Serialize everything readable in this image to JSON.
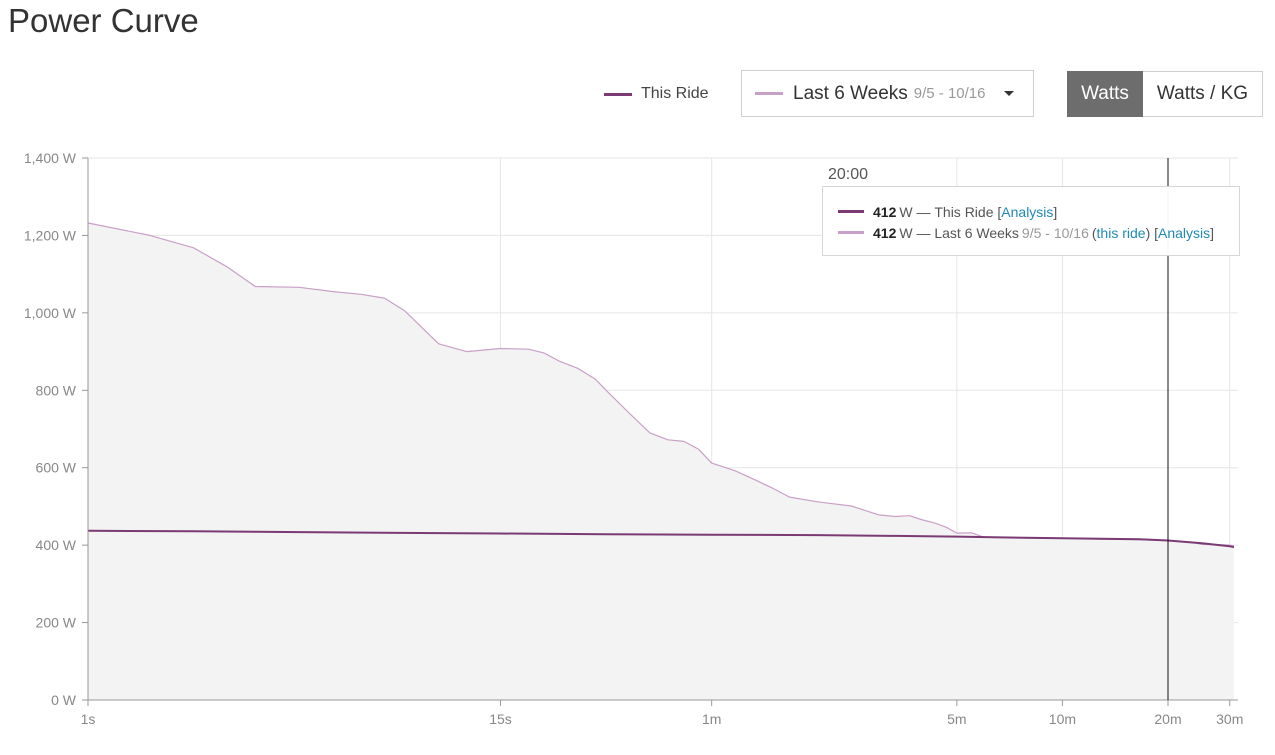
{
  "page": {
    "title": "Power Curve"
  },
  "legend": {
    "this_ride_label": "This Ride",
    "this_ride_color": "#7b3a73",
    "comparison_label": "Last 6 Weeks",
    "comparison_dates": "9/5 - 10/16",
    "comparison_color": "#c9a0c7"
  },
  "unit_toggle": {
    "watts_label": "Watts",
    "watts_per_kg_label": "Watts / KG",
    "selected": "Watts"
  },
  "tooltip": {
    "time": "20:00",
    "row1": {
      "value": "412",
      "unit": "W",
      "sep": "—",
      "series": "This Ride",
      "bracket_open": "[",
      "link": "Analysis",
      "bracket_close": "]"
    },
    "row2": {
      "value": "412",
      "unit": "W",
      "sep": "—",
      "series": "Last 6 Weeks",
      "dates": "9/5 - 10/16",
      "paren_open": "(",
      "this_ride_link": "this ride",
      "paren_close": ")",
      "bracket_open": "[",
      "link": "Analysis",
      "bracket_close": "]"
    }
  },
  "chart_data": {
    "type": "line",
    "x_scale": "log",
    "x_unit": "seconds",
    "xlim": [
      1,
      1900
    ],
    "ylim": [
      0,
      1400
    ],
    "grid": true,
    "x_ticks": [
      {
        "value": 1,
        "label": "1s"
      },
      {
        "value": 15,
        "label": "15s"
      },
      {
        "value": 60,
        "label": "1m"
      },
      {
        "value": 300,
        "label": "5m"
      },
      {
        "value": 600,
        "label": "10m"
      },
      {
        "value": 1200,
        "label": "20m"
      },
      {
        "value": 1800,
        "label": "30m"
      }
    ],
    "y_ticks": [
      {
        "value": 0,
        "label": "0 W"
      },
      {
        "value": 200,
        "label": "200 W"
      },
      {
        "value": 400,
        "label": "400 W"
      },
      {
        "value": 600,
        "label": "600 W"
      },
      {
        "value": 800,
        "label": "800 W"
      },
      {
        "value": 1000,
        "label": "1,000 W"
      },
      {
        "value": 1200,
        "label": "1,200 W"
      },
      {
        "value": 1400,
        "label": "1,400 W"
      }
    ],
    "cursor_x": 1200,
    "series": [
      {
        "name": "Last 6 Weeks",
        "color": "#c9a0c7",
        "fill": "#f3f3f3",
        "x": [
          1,
          1.5,
          2,
          2.5,
          3,
          4,
          5,
          6,
          7,
          8,
          10,
          12,
          15,
          18,
          20,
          22,
          25,
          28,
          30,
          35,
          40,
          45,
          50,
          55,
          60,
          70,
          80,
          90,
          100,
          120,
          150,
          180,
          200,
          220,
          240,
          260,
          280,
          300,
          330,
          360,
          400,
          500,
          600,
          700,
          800,
          1000,
          1200,
          1400,
          1500,
          1800,
          1850
        ],
        "values": [
          1232,
          1200,
          1168,
          1118,
          1068,
          1066,
          1055,
          1048,
          1038,
          1005,
          920,
          900,
          908,
          906,
          896,
          876,
          856,
          828,
          800,
          740,
          690,
          672,
          668,
          648,
          612,
          592,
          568,
          546,
          524,
          512,
          501,
          478,
          474,
          476,
          465,
          457,
          446,
          431,
          432,
          420,
          420,
          418,
          418,
          416,
          415,
          414,
          412,
          407,
          402,
          400,
          398
        ]
      },
      {
        "name": "This Ride",
        "color": "#7b3a73",
        "x": [
          1,
          2,
          5,
          10,
          15,
          30,
          60,
          120,
          200,
          300,
          400,
          600,
          1000,
          1200,
          1500,
          1800,
          1850
        ],
        "values": [
          437,
          436,
          433,
          431,
          430,
          428,
          427,
          426,
          424,
          422,
          420,
          418,
          415,
          412,
          405,
          397,
          395
        ]
      }
    ]
  }
}
